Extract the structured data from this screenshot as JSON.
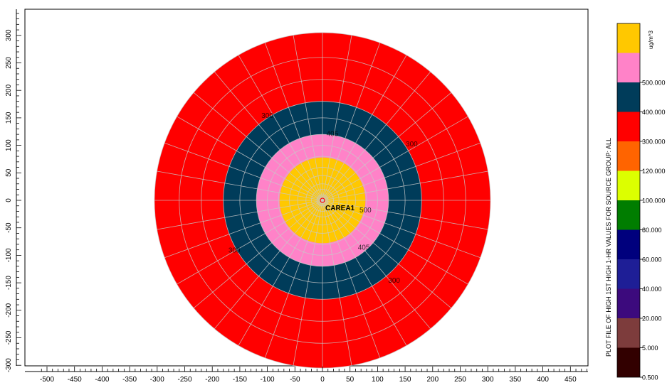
{
  "chart_data": {
    "type": "heatmap",
    "subtype": "polar concentration contour",
    "grid": true,
    "legend_position": "right",
    "x_range": [
      -520,
      490
    ],
    "y_range": [
      -315,
      350
    ],
    "x_ticks": [
      -500,
      -450,
      -400,
      -350,
      -300,
      -250,
      -200,
      -150,
      -100,
      -50,
      0,
      50,
      100,
      150,
      200,
      250,
      300,
      350,
      400,
      450
    ],
    "y_ticks": [
      300,
      250,
      200,
      150,
      100,
      50,
      0,
      -50,
      -100,
      -150,
      -200,
      -250,
      -300
    ],
    "x_tick_labels": [
      "-500",
      "-450",
      "-400",
      "-350",
      "-300",
      "-250",
      "-200",
      "-150",
      "-100",
      "-50",
      "0",
      "50",
      "100",
      "150",
      "200",
      "250",
      "300",
      "350",
      "400",
      "450"
    ],
    "y_tick_labels": [
      "300",
      "250",
      "200",
      "150",
      "100",
      "50",
      "0",
      "-50",
      "-100",
      "-150",
      "-200",
      "-250",
      "-300"
    ],
    "polar_grid": {
      "center": [
        0,
        0
      ],
      "ring_radii": [
        10,
        20,
        30,
        45,
        60,
        80,
        100,
        120,
        150,
        180,
        220,
        260,
        305
      ],
      "spoke_count": 36
    },
    "contour_bands": [
      {
        "outer_radius": 305,
        "color": "#ff0000"
      },
      {
        "outer_radius": 180,
        "color": "#003c5a"
      },
      {
        "outer_radius": 120,
        "color": "#ff82c8"
      },
      {
        "outer_radius": 78,
        "color": "#ffc800"
      }
    ],
    "contour_labels": [
      {
        "text": "405",
        "x": 18,
        "y": 117
      },
      {
        "text": "300",
        "x": 162,
        "y": 98
      },
      {
        "text": "300",
        "x": -100,
        "y": 150
      },
      {
        "text": "405",
        "x": 75,
        "y": -90
      },
      {
        "text": "500",
        "x": 78,
        "y": -22
      },
      {
        "text": "300",
        "x": -160,
        "y": -95
      },
      {
        "text": "300",
        "x": 130,
        "y": -150
      }
    ],
    "source": {
      "label": "CAREA1",
      "x": 0,
      "y": 0,
      "marker_color": "#ff0000"
    },
    "legend": {
      "unit": "ug/m^3",
      "title": "PLOT FILE OF  HIGH 1ST  HIGH 1-HR VALUES FOR SOURCE GROUP: ALL",
      "ticks": [
        "0.500",
        "5.000",
        "20.000",
        "40.000",
        "60.000",
        "80.000",
        "100.000",
        "120.000",
        "300.000",
        "400.000",
        "500.000"
      ],
      "colors": [
        "#320000",
        "#7d3c3c",
        "#3c0a7d",
        "#1e1e96",
        "#00007d",
        "#007d00",
        "#dcff00",
        "#ff6400",
        "#ff0000",
        "#003c5a",
        "#ff82c8",
        "#ffc800"
      ]
    }
  }
}
